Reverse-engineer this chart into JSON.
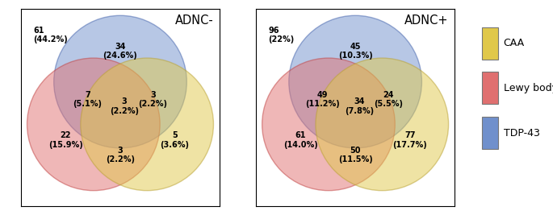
{
  "diagrams": [
    {
      "title": "ADNC-",
      "tdp43_only": {
        "n": 34,
        "pct": "24.6%"
      },
      "lewy_only": {
        "n": 22,
        "pct": "15.9%"
      },
      "caa_only": {
        "n": 5,
        "pct": "3.6%"
      },
      "tdp_lewy": {
        "n": 7,
        "pct": "5.1%"
      },
      "tdp_caa": {
        "n": 3,
        "pct": "2.2%"
      },
      "lewy_caa": {
        "n": 3,
        "pct": "2.2%"
      },
      "all3": {
        "n": 3,
        "pct": "2.2%"
      },
      "none": {
        "n": 61,
        "pct": "44.2%"
      }
    },
    {
      "title": "ADNC+",
      "tdp43_only": {
        "n": 45,
        "pct": "10.3%"
      },
      "lewy_only": {
        "n": 61,
        "pct": "14.0%"
      },
      "caa_only": {
        "n": 77,
        "pct": "17.7%"
      },
      "tdp_lewy": {
        "n": 49,
        "pct": "11.2%"
      },
      "tdp_caa": {
        "n": 24,
        "pct": "5.5%"
      },
      "lewy_caa": {
        "n": 50,
        "pct": "11.5%"
      },
      "all3": {
        "n": 34,
        "pct": "7.8%"
      },
      "none": {
        "n": 96,
        "pct": "22%"
      }
    }
  ],
  "colors": {
    "caa": "#E0C84A",
    "lewy": "#E07070",
    "tdp43": "#7090CC"
  },
  "legend": [
    {
      "label": "CAA",
      "color": "#E0C84A"
    },
    {
      "label": "Lewy body",
      "color": "#E07070"
    },
    {
      "label": "TDP-43",
      "color": "#7090CC"
    }
  ],
  "circle_alpha": 0.5,
  "circle_edgecolor_caa": "#B8A030",
  "circle_edgecolor_lewy": "#C04040",
  "circle_edgecolor_tdp": "#4060AA",
  "fontsize_label": 7.0,
  "fontsize_title": 10.5,
  "fontsize_legend": 9.0,
  "fontsize_none": 7.0
}
